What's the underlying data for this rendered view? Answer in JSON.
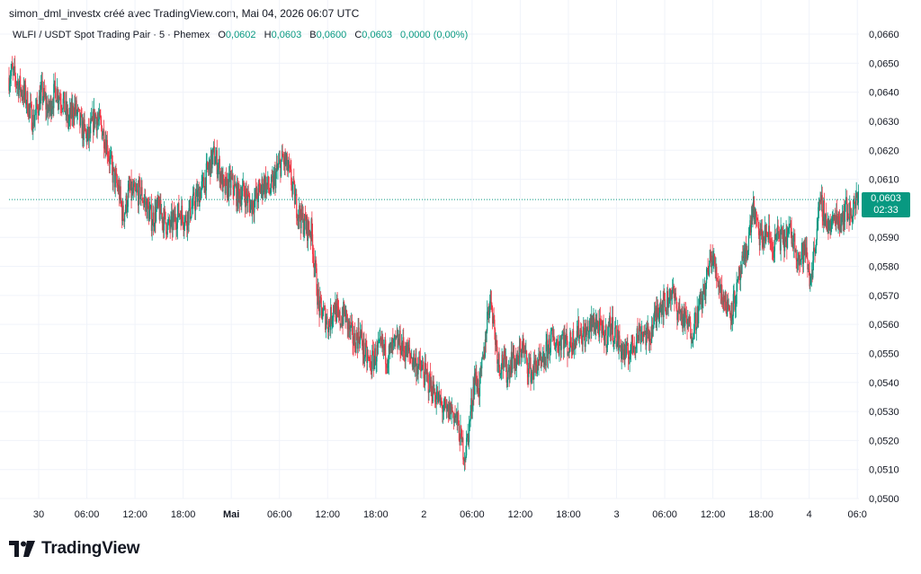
{
  "attribution": "simon_dml_investx créé avec TradingView.com, Mai 04, 2026 06:07 UTC",
  "header": {
    "symbol": "WLFI / USDT Spot Trading Pair · 5 · Phemex",
    "open_label": "O",
    "open_value": "0,0602",
    "high_label": "H",
    "high_value": "0,0603",
    "low_label": "B",
    "low_value": "0,0600",
    "close_label": "C",
    "close_value": "0,0603",
    "change": "0,0000 (0,00%)"
  },
  "price_tag": {
    "price": "0,0603",
    "countdown": "02:33"
  },
  "logo": {
    "text": "TradingView"
  },
  "colors": {
    "up": "#089981",
    "down": "#f23645",
    "grid": "#f0f3fa",
    "current_line": "#089981"
  },
  "chart_data": {
    "type": "candlestick",
    "title": "",
    "xlabel": "",
    "ylabel": "",
    "ylim": [
      0.05,
      0.066
    ],
    "y_ticks": [
      "0,0660",
      "0,0650",
      "0,0640",
      "0,0630",
      "0,0620",
      "0,0610",
      "0,0600",
      "0,0590",
      "0,0580",
      "0,0570",
      "0,0560",
      "0,0550",
      "0,0540",
      "0,0530",
      "0,0520",
      "0,0510",
      "0,0500"
    ],
    "x_ticks": [
      {
        "label": "30",
        "hour": 24,
        "bold": false
      },
      {
        "label": "06:00",
        "hour": 30,
        "bold": false
      },
      {
        "label": "12:00",
        "hour": 36,
        "bold": false
      },
      {
        "label": "18:00",
        "hour": 42,
        "bold": false
      },
      {
        "label": "Mai",
        "hour": 48,
        "bold": true
      },
      {
        "label": "06:00",
        "hour": 54,
        "bold": false
      },
      {
        "label": "12:00",
        "hour": 60,
        "bold": false
      },
      {
        "label": "18:00",
        "hour": 66,
        "bold": false
      },
      {
        "label": "2",
        "hour": 72,
        "bold": false
      },
      {
        "label": "06:00",
        "hour": 78,
        "bold": false
      },
      {
        "label": "12:00",
        "hour": 84,
        "bold": false
      },
      {
        "label": "18:00",
        "hour": 90,
        "bold": false
      },
      {
        "label": "3",
        "hour": 96,
        "bold": false
      },
      {
        "label": "06:00",
        "hour": 102,
        "bold": false
      },
      {
        "label": "12:00",
        "hour": 108,
        "bold": false
      },
      {
        "label": "18:00",
        "hour": 114,
        "bold": false
      },
      {
        "label": "4",
        "hour": 120,
        "bold": false
      },
      {
        "label": "06:0",
        "hour": 126,
        "bold": false
      }
    ],
    "x_range_hours": [
      20.3,
      126.2
    ],
    "current_price": 0.0603,
    "grid": true,
    "path": [
      [
        20.3,
        0.0645
      ],
      [
        20.6,
        0.0647
      ],
      [
        21.4,
        0.0643
      ],
      [
        22.4,
        0.0638
      ],
      [
        23.3,
        0.063
      ],
      [
        24.4,
        0.064
      ],
      [
        25.2,
        0.0633
      ],
      [
        26.1,
        0.0641
      ],
      [
        27.0,
        0.0637
      ],
      [
        27.7,
        0.063
      ],
      [
        28.5,
        0.0635
      ],
      [
        29.3,
        0.0628
      ],
      [
        30.2,
        0.0624
      ],
      [
        31.0,
        0.0632
      ],
      [
        31.8,
        0.0628
      ],
      [
        32.5,
        0.0622
      ],
      [
        33.2,
        0.0612
      ],
      [
        34.0,
        0.0606
      ],
      [
        34.5,
        0.0597
      ],
      [
        35.3,
        0.0606
      ],
      [
        36.0,
        0.0604
      ],
      [
        36.6,
        0.0606
      ],
      [
        37.4,
        0.0601
      ],
      [
        38.1,
        0.0596
      ],
      [
        38.8,
        0.06
      ],
      [
        39.5,
        0.0597
      ],
      [
        40.2,
        0.0593
      ],
      [
        40.9,
        0.0596
      ],
      [
        41.6,
        0.0599
      ],
      [
        42.3,
        0.0596
      ],
      [
        43.0,
        0.06
      ],
      [
        43.8,
        0.0604
      ],
      [
        44.5,
        0.0608
      ],
      [
        45.2,
        0.0614
      ],
      [
        45.8,
        0.0618
      ],
      [
        46.4,
        0.0615
      ],
      [
        47.1,
        0.0606
      ],
      [
        48.0,
        0.0609
      ],
      [
        48.8,
        0.0604
      ],
      [
        49.5,
        0.0606
      ],
      [
        50.4,
        0.0601
      ],
      [
        51.2,
        0.0604
      ],
      [
        52.1,
        0.0609
      ],
      [
        52.9,
        0.0606
      ],
      [
        53.6,
        0.0612
      ],
      [
        54.4,
        0.0617
      ],
      [
        55.0,
        0.0614
      ],
      [
        55.5,
        0.0609
      ],
      [
        56.1,
        0.0601
      ],
      [
        56.8,
        0.0596
      ],
      [
        57.5,
        0.0593
      ],
      [
        58.0,
        0.0592
      ],
      [
        58.4,
        0.058
      ],
      [
        58.9,
        0.0566
      ],
      [
        59.6,
        0.0563
      ],
      [
        60.2,
        0.056
      ],
      [
        60.8,
        0.0567
      ],
      [
        61.4,
        0.0561
      ],
      [
        62.1,
        0.0564
      ],
      [
        62.6,
        0.0559
      ],
      [
        63.3,
        0.0554
      ],
      [
        64.0,
        0.0557
      ],
      [
        64.6,
        0.055
      ],
      [
        65.3,
        0.0546
      ],
      [
        66.1,
        0.055
      ],
      [
        66.8,
        0.0552
      ],
      [
        67.5,
        0.0549
      ],
      [
        68.2,
        0.0552
      ],
      [
        68.9,
        0.0554
      ],
      [
        69.6,
        0.0551
      ],
      [
        70.4,
        0.0549
      ],
      [
        71.1,
        0.0546
      ],
      [
        71.8,
        0.0544
      ],
      [
        72.6,
        0.054
      ],
      [
        73.4,
        0.0536
      ],
      [
        74.2,
        0.0532
      ],
      [
        74.8,
        0.0529
      ],
      [
        75.4,
        0.0531
      ],
      [
        76.1,
        0.0527
      ],
      [
        76.7,
        0.0519
      ],
      [
        77.1,
        0.0515
      ],
      [
        77.6,
        0.0524
      ],
      [
        78.3,
        0.0542
      ],
      [
        78.9,
        0.0538
      ],
      [
        79.5,
        0.055
      ],
      [
        80.0,
        0.0566
      ],
      [
        80.4,
        0.0569
      ],
      [
        80.9,
        0.0555
      ],
      [
        81.4,
        0.0546
      ],
      [
        81.8,
        0.0548
      ],
      [
        82.4,
        0.0543
      ],
      [
        83.0,
        0.0549
      ],
      [
        83.6,
        0.0546
      ],
      [
        84.2,
        0.0553
      ],
      [
        84.8,
        0.0547
      ],
      [
        85.5,
        0.0543
      ],
      [
        86.1,
        0.0547
      ],
      [
        86.8,
        0.0545
      ],
      [
        87.4,
        0.0552
      ],
      [
        88.0,
        0.0555
      ],
      [
        88.7,
        0.0553
      ],
      [
        89.3,
        0.0556
      ],
      [
        90.0,
        0.0552
      ],
      [
        90.6,
        0.0555
      ],
      [
        91.3,
        0.0558
      ],
      [
        92.0,
        0.0556
      ],
      [
        92.7,
        0.0559
      ],
      [
        93.4,
        0.0561
      ],
      [
        94.1,
        0.0557
      ],
      [
        94.7,
        0.0556
      ],
      [
        95.2,
        0.056
      ],
      [
        95.8,
        0.0557
      ],
      [
        96.5,
        0.0552
      ],
      [
        97.2,
        0.0549
      ],
      [
        97.9,
        0.0552
      ],
      [
        98.5,
        0.0556
      ],
      [
        99.2,
        0.0558
      ],
      [
        99.9,
        0.0555
      ],
      [
        100.6,
        0.056
      ],
      [
        101.4,
        0.0568
      ],
      [
        102.1,
        0.0566
      ],
      [
        102.8,
        0.0572
      ],
      [
        103.5,
        0.0566
      ],
      [
        104.1,
        0.0563
      ],
      [
        104.8,
        0.056
      ],
      [
        105.4,
        0.0558
      ],
      [
        106.1,
        0.0564
      ],
      [
        106.8,
        0.057
      ],
      [
        107.4,
        0.0578
      ],
      [
        107.8,
        0.0584
      ],
      [
        108.4,
        0.0578
      ],
      [
        109.0,
        0.0572
      ],
      [
        109.6,
        0.0567
      ],
      [
        110.3,
        0.0565
      ],
      [
        110.9,
        0.057
      ],
      [
        111.5,
        0.0578
      ],
      [
        112.1,
        0.0584
      ],
      [
        112.6,
        0.0592
      ],
      [
        113.0,
        0.0601
      ],
      [
        113.5,
        0.0593
      ],
      [
        114.1,
        0.0589
      ],
      [
        114.8,
        0.0592
      ],
      [
        115.4,
        0.0586
      ],
      [
        116.1,
        0.0591
      ],
      [
        116.8,
        0.0588
      ],
      [
        117.5,
        0.0592
      ],
      [
        118.2,
        0.0588
      ],
      [
        118.8,
        0.0582
      ],
      [
        119.5,
        0.0586
      ],
      [
        120.1,
        0.0575
      ],
      [
        120.6,
        0.0584
      ],
      [
        121.1,
        0.0598
      ],
      [
        121.6,
        0.0601
      ],
      [
        122.1,
        0.0596
      ],
      [
        122.7,
        0.0593
      ],
      [
        123.3,
        0.0598
      ],
      [
        123.9,
        0.0596
      ],
      [
        124.5,
        0.06
      ],
      [
        125.1,
        0.0598
      ],
      [
        125.6,
        0.0601
      ],
      [
        126.2,
        0.0603
      ]
    ]
  }
}
